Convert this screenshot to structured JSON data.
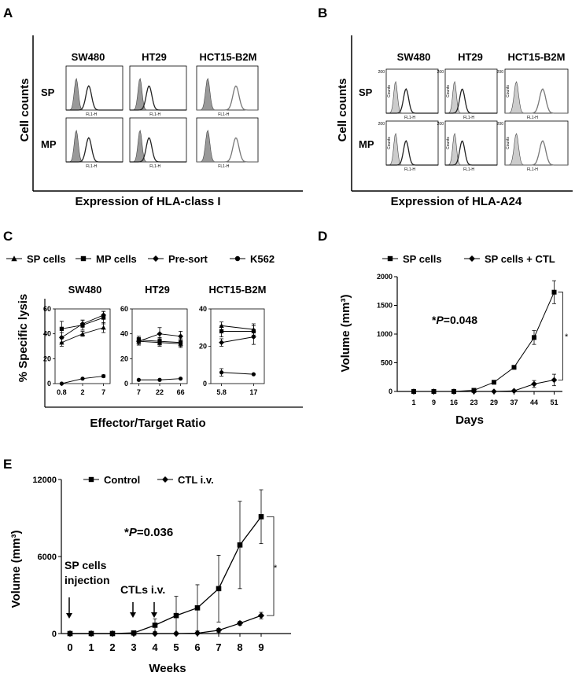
{
  "panels": {
    "A": {
      "letter": "A",
      "cols": [
        "SW480",
        "HT29",
        "HCT15-B2M"
      ],
      "rows": [
        "SP",
        "MP"
      ],
      "ylabel": "Cell counts",
      "xlabel": "Expression of HLA-class I",
      "axis_label": "FL1-H"
    },
    "B": {
      "letter": "B",
      "cols": [
        "SW480",
        "HT29",
        "HCT15-B2M"
      ],
      "rows": [
        "SP",
        "MP"
      ],
      "ylabel": "Cell counts",
      "xlabel": "Expression of HLA-A24",
      "axis_label": "FL1-H",
      "y_tick": "200",
      "y_axis_label": "Counts"
    },
    "C": {
      "letter": "C"
    },
    "D": {
      "letter": "D"
    },
    "E": {
      "letter": "E"
    }
  },
  "chart_data": [
    {
      "id": "C",
      "type": "line",
      "ylabel": "% Specific lysis",
      "xlabel": "Effector/Target Ratio",
      "legend": [
        "SP cells",
        "MP cells",
        "Pre-sort",
        "K562"
      ],
      "subplots": [
        {
          "title": "SW480",
          "x": [
            "0.8",
            "2",
            "7"
          ],
          "ylim": [
            0,
            60
          ],
          "yticks": [
            "0",
            "20",
            "40",
            "60"
          ],
          "series": [
            {
              "name": "SP cells",
              "marker": "triangle",
              "values": [
                33,
                40,
                45
              ],
              "err": [
                3,
                2,
                4
              ]
            },
            {
              "name": "MP cells",
              "marker": "square",
              "values": [
                44,
                47,
                53
              ],
              "err": [
                6,
                4,
                5
              ]
            },
            {
              "name": "Pre-sort",
              "marker": "diamond",
              "values": [
                37,
                48,
                55
              ],
              "err": [
                4,
                3,
                3
              ]
            },
            {
              "name": "K562",
              "marker": "circle",
              "values": [
                0,
                4,
                6
              ],
              "err": [
                0,
                0,
                1
              ]
            }
          ]
        },
        {
          "title": "HT29",
          "x": [
            "7",
            "22",
            "66"
          ],
          "ylim": [
            0,
            60
          ],
          "yticks": [
            "0",
            "20",
            "40",
            "60"
          ],
          "series": [
            {
              "name": "SP cells",
              "marker": "triangle",
              "values": [
                34,
                33,
                32
              ],
              "err": [
                3,
                3,
                3
              ]
            },
            {
              "name": "MP cells",
              "marker": "square",
              "values": [
                35,
                34,
                33
              ],
              "err": [
                3,
                3,
                3
              ]
            },
            {
              "name": "Pre-sort",
              "marker": "diamond",
              "values": [
                34,
                40,
                38
              ],
              "err": [
                3,
                5,
                4
              ]
            },
            {
              "name": "K562",
              "marker": "circle",
              "values": [
                3,
                3,
                4
              ],
              "err": [
                0,
                0,
                0
              ]
            }
          ]
        },
        {
          "title": "HCT15-B2M",
          "x": [
            "5.8",
            "17"
          ],
          "ylim": [
            0,
            40
          ],
          "yticks": [
            "0",
            "20",
            "40"
          ],
          "series": [
            {
              "name": "SP cells",
              "marker": "triangle",
              "values": [
                31,
                29
              ],
              "err": [
                2,
                3
              ]
            },
            {
              "name": "MP cells",
              "marker": "square",
              "values": [
                28,
                28
              ],
              "err": [
                3,
                3
              ]
            },
            {
              "name": "Pre-sort",
              "marker": "diamond",
              "values": [
                22,
                25
              ],
              "err": [
                2,
                4
              ]
            },
            {
              "name": "K562",
              "marker": "circle",
              "values": [
                6,
                5
              ],
              "err": [
                2,
                0
              ]
            }
          ]
        }
      ]
    },
    {
      "id": "D",
      "type": "line",
      "ylabel": "Volume (mm³)",
      "xlabel": "Days",
      "annotation": "*P=0.048",
      "sig": "*",
      "x": [
        "1",
        "9",
        "16",
        "23",
        "29",
        "37",
        "44",
        "51"
      ],
      "ylim": [
        0,
        2000
      ],
      "yticks": [
        "0",
        "500",
        "1000",
        "1500",
        "2000"
      ],
      "series": [
        {
          "name": "SP cells",
          "marker": "square",
          "values": [
            0,
            0,
            0,
            20,
            160,
            420,
            940,
            1730
          ],
          "err": [
            0,
            0,
            0,
            5,
            15,
            20,
            120,
            200
          ]
        },
        {
          "name": "SP cells + CTL",
          "marker": "diamond",
          "values": [
            0,
            0,
            0,
            0,
            0,
            10,
            130,
            200
          ],
          "err": [
            0,
            0,
            0,
            0,
            0,
            5,
            60,
            100
          ]
        }
      ]
    },
    {
      "id": "E",
      "type": "line",
      "ylabel": "Volume (mm³)",
      "xlabel": "Weeks",
      "annotation": "*P=0.036",
      "sig": "*",
      "x": [
        "0",
        "1",
        "2",
        "3",
        "4",
        "5",
        "6",
        "7",
        "8",
        "9"
      ],
      "ylim": [
        0,
        12000
      ],
      "yticks": [
        "0",
        "6000",
        "12000"
      ],
      "series": [
        {
          "name": "Control",
          "marker": "square",
          "values": [
            0,
            0,
            0,
            50,
            650,
            1400,
            2000,
            3500,
            6900,
            9100
          ],
          "err": [
            0,
            0,
            0,
            50,
            500,
            1500,
            1800,
            2600,
            3400,
            2100
          ]
        },
        {
          "name": "CTL i.v.",
          "marker": "diamond",
          "values": [
            0,
            0,
            0,
            0,
            0,
            0,
            30,
            250,
            800,
            1400
          ],
          "err": [
            0,
            0,
            0,
            0,
            0,
            0,
            30,
            150,
            150,
            250
          ]
        }
      ],
      "events": [
        {
          "label_lines": [
            "SP cells",
            "injection"
          ],
          "weeks": [
            0
          ]
        },
        {
          "label_lines": [
            "CTLs i.v."
          ],
          "weeks": [
            3,
            4
          ]
        }
      ]
    }
  ]
}
